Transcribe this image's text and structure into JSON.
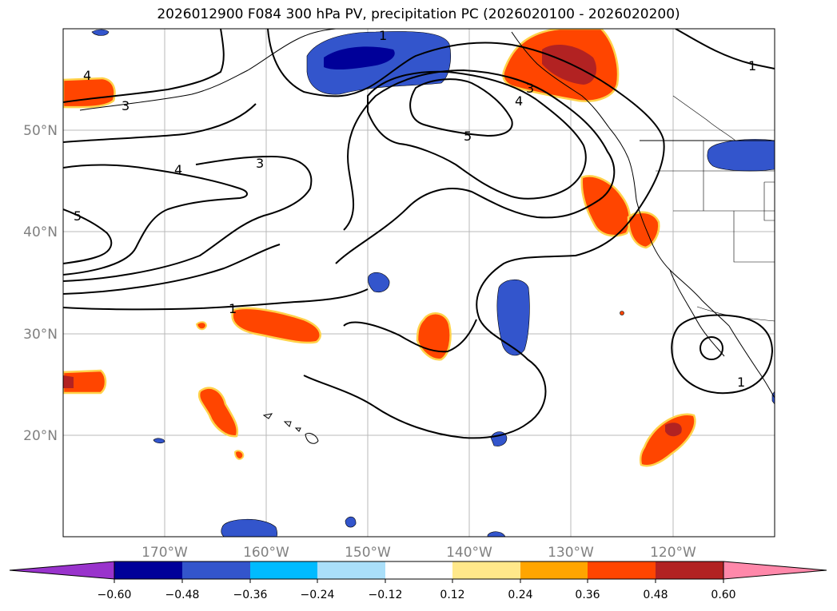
{
  "title": "2026012900 F084 300 hPa PV, precipitation PC (2026020100 - 2026020200)",
  "map": {
    "lon_range": [
      -180,
      -110
    ],
    "lat_range": [
      10,
      60
    ],
    "lat_ticks": [
      "20°N",
      "30°N",
      "40°N",
      "50°N"
    ],
    "lon_ticks": [
      "170°W",
      "160°W",
      "150°W",
      "140°W",
      "130°W",
      "120°W"
    ],
    "contour_labels": [
      "1",
      "3",
      "4",
      "5",
      "3",
      "4",
      "5",
      "3",
      "4",
      "1",
      "1",
      "1"
    ]
  },
  "colorbar": {
    "ticks": [
      "−0.60",
      "−0.48",
      "−0.36",
      "−0.24",
      "−0.12",
      "0.12",
      "0.24",
      "0.36",
      "0.48",
      "0.60"
    ],
    "colors": [
      "#9933cc",
      "#000099",
      "#3355cc",
      "#00bbff",
      "#aadff9",
      "#ffffff",
      "#ffe88a",
      "#ffa500",
      "#ff4500",
      "#b22222",
      "#ff88aa"
    ]
  }
}
